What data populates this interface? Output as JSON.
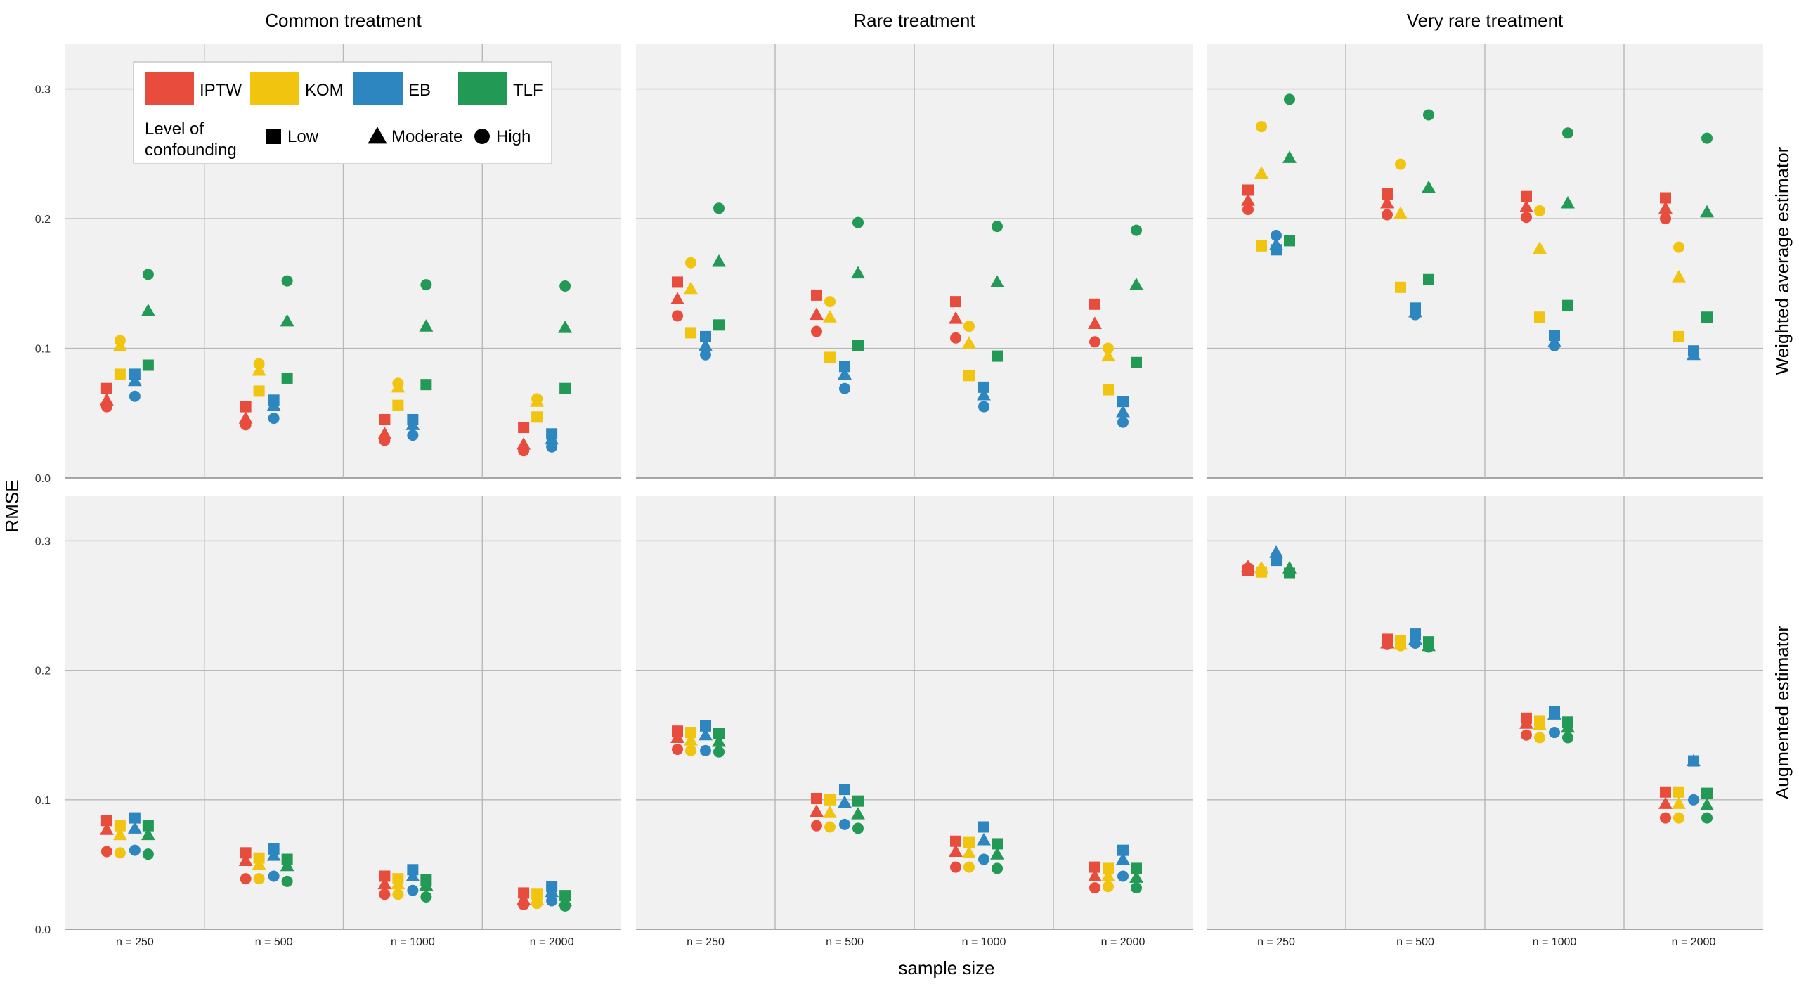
{
  "chart_data": {
    "type": "scatter",
    "ylabel": "RMSE",
    "xlabel": "sample size",
    "columns": [
      "Common treatment",
      "Rare treatment",
      "Very rare treatment"
    ],
    "rows": [
      "Weighted average estimator",
      "Augmented estimator"
    ],
    "categories": [
      "n = 250",
      "n = 500",
      "n = 1000",
      "n = 2000"
    ],
    "ylim": [
      0,
      0.335
    ],
    "yticks": [
      "0.0",
      "0.1",
      "0.2",
      "0.3"
    ],
    "methods": [
      {
        "name": "IPTW",
        "color": "#e84c3d"
      },
      {
        "name": "KOM",
        "color": "#f1c40f"
      },
      {
        "name": "EB",
        "color": "#2e86c1"
      },
      {
        "name": "TLF",
        "color": "#229954"
      }
    ],
    "confounding_title": "Level of\nconfounding",
    "confounding_levels": [
      {
        "name": "Low",
        "shape": "square"
      },
      {
        "name": "Moderate",
        "shape": "triangle"
      },
      {
        "name": "High",
        "shape": "circle"
      }
    ],
    "series_order_note": "values[method][n] = [Low, Moderate, High]",
    "panels": [
      {
        "row": "Weighted average estimator",
        "column": "Common treatment",
        "values": {
          "IPTW": [
            [
              0.069,
              0.06,
              0.055
            ],
            [
              0.055,
              0.046,
              0.041
            ],
            [
              0.045,
              0.034,
              0.029
            ],
            [
              0.039,
              0.026,
              0.021
            ]
          ],
          "KOM": [
            [
              0.08,
              0.102,
              0.106
            ],
            [
              0.067,
              0.083,
              0.088
            ],
            [
              0.056,
              0.07,
              0.073
            ],
            [
              0.047,
              0.059,
              0.061
            ]
          ],
          "EB": [
            [
              0.08,
              0.075,
              0.063
            ],
            [
              0.06,
              0.056,
              0.046
            ],
            [
              0.045,
              0.041,
              0.033
            ],
            [
              0.034,
              0.03,
              0.024
            ]
          ],
          "TLF": [
            [
              0.087,
              0.129,
              0.157
            ],
            [
              0.077,
              0.121,
              0.152
            ],
            [
              0.072,
              0.117,
              0.149
            ],
            [
              0.069,
              0.116,
              0.148
            ]
          ]
        }
      },
      {
        "row": "Weighted average estimator",
        "column": "Rare treatment",
        "values": {
          "IPTW": [
            [
              0.151,
              0.138,
              0.125
            ],
            [
              0.141,
              0.126,
              0.113
            ],
            [
              0.136,
              0.123,
              0.108
            ],
            [
              0.134,
              0.119,
              0.105
            ]
          ],
          "KOM": [
            [
              0.112,
              0.146,
              0.166
            ],
            [
              0.093,
              0.124,
              0.136
            ],
            [
              0.079,
              0.104,
              0.117
            ],
            [
              0.068,
              0.094,
              0.1
            ]
          ],
          "EB": [
            [
              0.109,
              0.102,
              0.095
            ],
            [
              0.086,
              0.08,
              0.069
            ],
            [
              0.07,
              0.064,
              0.055
            ],
            [
              0.059,
              0.051,
              0.043
            ]
          ],
          "TLF": [
            [
              0.118,
              0.167,
              0.208
            ],
            [
              0.102,
              0.158,
              0.197
            ],
            [
              0.094,
              0.151,
              0.194
            ],
            [
              0.089,
              0.149,
              0.191
            ]
          ]
        }
      },
      {
        "row": "Weighted average estimator",
        "column": "Very rare treatment",
        "values": {
          "IPTW": [
            [
              0.222,
              0.214,
              0.207
            ],
            [
              0.219,
              0.212,
              0.203
            ],
            [
              0.217,
              0.209,
              0.201
            ],
            [
              0.216,
              0.208,
              0.2
            ]
          ],
          "KOM": [
            [
              0.179,
              0.235,
              0.271
            ],
            [
              0.147,
              0.204,
              0.242
            ],
            [
              0.124,
              0.177,
              0.206
            ],
            [
              0.109,
              0.155,
              0.178
            ]
          ],
          "EB": [
            [
              0.176,
              0.18,
              0.187
            ],
            [
              0.131,
              0.128,
              0.126
            ],
            [
              0.11,
              0.105,
              0.102
            ],
            [
              0.098,
              0.095,
              0.097
            ]
          ],
          "TLF": [
            [
              0.183,
              0.247,
              0.292
            ],
            [
              0.153,
              0.224,
              0.28
            ],
            [
              0.133,
              0.212,
              0.266
            ],
            [
              0.124,
              0.205,
              0.262
            ]
          ]
        }
      },
      {
        "row": "Augmented estimator",
        "column": "Common treatment",
        "values": {
          "IPTW": [
            [
              0.084,
              0.077,
              0.06
            ],
            [
              0.059,
              0.053,
              0.039
            ],
            [
              0.041,
              0.035,
              0.027
            ],
            [
              0.028,
              0.023,
              0.019
            ]
          ],
          "KOM": [
            [
              0.08,
              0.073,
              0.059
            ],
            [
              0.055,
              0.05,
              0.039
            ],
            [
              0.039,
              0.035,
              0.027
            ],
            [
              0.027,
              0.023,
              0.02
            ]
          ],
          "EB": [
            [
              0.086,
              0.078,
              0.061
            ],
            [
              0.062,
              0.057,
              0.041
            ],
            [
              0.046,
              0.041,
              0.03
            ],
            [
              0.033,
              0.029,
              0.022
            ]
          ],
          "TLF": [
            [
              0.08,
              0.073,
              0.058
            ],
            [
              0.054,
              0.049,
              0.037
            ],
            [
              0.038,
              0.034,
              0.025
            ],
            [
              0.026,
              0.022,
              0.018
            ]
          ]
        }
      },
      {
        "row": "Augmented estimator",
        "column": "Rare treatment",
        "values": {
          "IPTW": [
            [
              0.153,
              0.148,
              0.139
            ],
            [
              0.101,
              0.091,
              0.08
            ],
            [
              0.068,
              0.06,
              0.048
            ],
            [
              0.048,
              0.041,
              0.032
            ]
          ],
          "KOM": [
            [
              0.152,
              0.146,
              0.138
            ],
            [
              0.1,
              0.09,
              0.079
            ],
            [
              0.067,
              0.059,
              0.048
            ],
            [
              0.047,
              0.041,
              0.033
            ]
          ],
          "EB": [
            [
              0.157,
              0.15,
              0.138
            ],
            [
              0.108,
              0.098,
              0.081
            ],
            [
              0.079,
              0.069,
              0.054
            ],
            [
              0.061,
              0.054,
              0.041
            ]
          ],
          "TLF": [
            [
              0.151,
              0.145,
              0.137
            ],
            [
              0.099,
              0.089,
              0.078
            ],
            [
              0.066,
              0.058,
              0.047
            ],
            [
              0.047,
              0.04,
              0.032
            ]
          ]
        }
      },
      {
        "row": "Augmented estimator",
        "column": "Very rare treatment",
        "values": {
          "IPTW": [
            [
              0.277,
              0.28,
              0.279
            ],
            [
              0.224,
              0.221,
              0.22
            ],
            [
              0.163,
              0.159,
              0.15
            ],
            [
              0.106,
              0.097,
              0.086
            ]
          ],
          "KOM": [
            [
              0.276,
              0.279,
              0.277
            ],
            [
              0.223,
              0.22,
              0.219
            ],
            [
              0.161,
              0.158,
              0.148
            ],
            [
              0.106,
              0.097,
              0.086
            ]
          ],
          "EB": [
            [
              0.285,
              0.291,
              0.288
            ],
            [
              0.228,
              0.224,
              0.221
            ],
            [
              0.168,
              0.166,
              0.152
            ],
            [
              0.13,
              0.13,
              0.1
            ]
          ],
          "TLF": [
            [
              0.275,
              0.279,
              0.276
            ],
            [
              0.222,
              0.219,
              0.218
            ],
            [
              0.16,
              0.156,
              0.148
            ],
            [
              0.105,
              0.096,
              0.086
            ]
          ]
        }
      }
    ]
  }
}
